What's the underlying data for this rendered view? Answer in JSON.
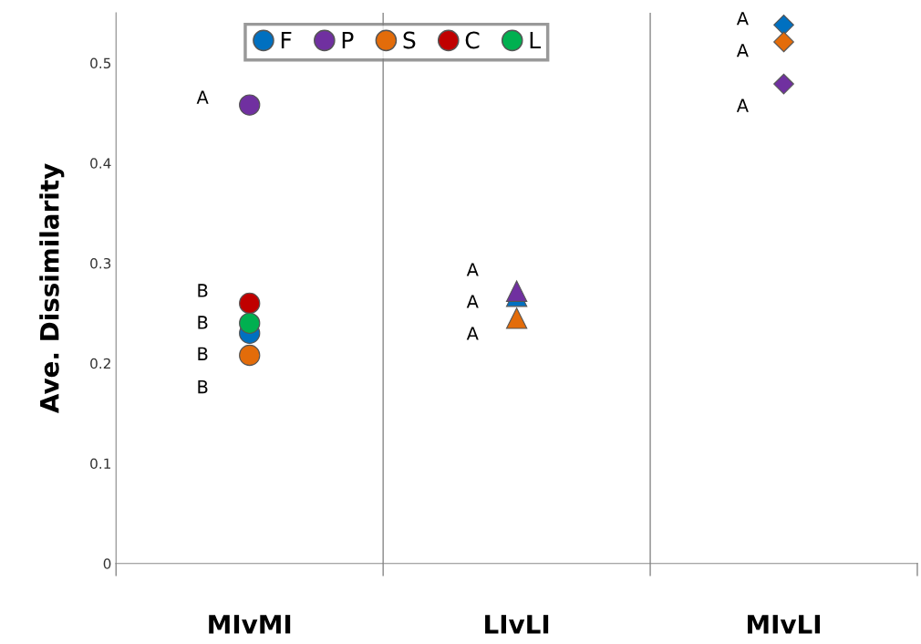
{
  "chart_data": {
    "type": "scatter",
    "ylabel": "Ave. Dissimilarity",
    "categories": [
      "MIvMI",
      "LIvLI",
      "MIvLI"
    ],
    "ylim": [
      0,
      0.55
    ],
    "yticks": [
      0,
      0.1,
      0.2,
      0.3,
      0.4,
      0.5
    ],
    "grid": "x",
    "legend": "top",
    "series": [
      {
        "name": "F",
        "color": "#0070c0",
        "marker": "circle",
        "values": [
          0.23,
          null,
          null
        ]
      },
      {
        "name": "P",
        "color": "#7030a0",
        "marker": "circle",
        "values": [
          0.458,
          null,
          null
        ]
      },
      {
        "name": "S",
        "color": "#e36c0a",
        "marker": "circle",
        "values": [
          0.208,
          null,
          null
        ]
      },
      {
        "name": "C",
        "color": "#c00000",
        "marker": "circle",
        "values": [
          0.26,
          null,
          null
        ]
      },
      {
        "name": "L",
        "color": "#00b050",
        "marker": "circle",
        "values": [
          0.24,
          null,
          null
        ]
      },
      {
        "color": "#0070c0",
        "marker": "triangle",
        "values": [
          null,
          0.267,
          null
        ]
      },
      {
        "color": "#e36c0a",
        "marker": "triangle",
        "values": [
          null,
          0.245,
          null
        ]
      },
      {
        "color": "#7030a0",
        "marker": "triangle",
        "values": [
          null,
          0.272,
          null
        ]
      },
      {
        "color": "#0070c0",
        "marker": "diamond",
        "values": [
          null,
          null,
          0.538
        ]
      },
      {
        "color": "#e36c0a",
        "marker": "diamond",
        "values": [
          null,
          null,
          0.521
        ]
      },
      {
        "color": "#7030a0",
        "marker": "diamond",
        "values": [
          null,
          null,
          0.479
        ]
      }
    ],
    "annotations": [
      "A",
      "B",
      "B",
      "B",
      "B",
      "A",
      "A",
      "A",
      "A",
      "A",
      "A"
    ]
  }
}
